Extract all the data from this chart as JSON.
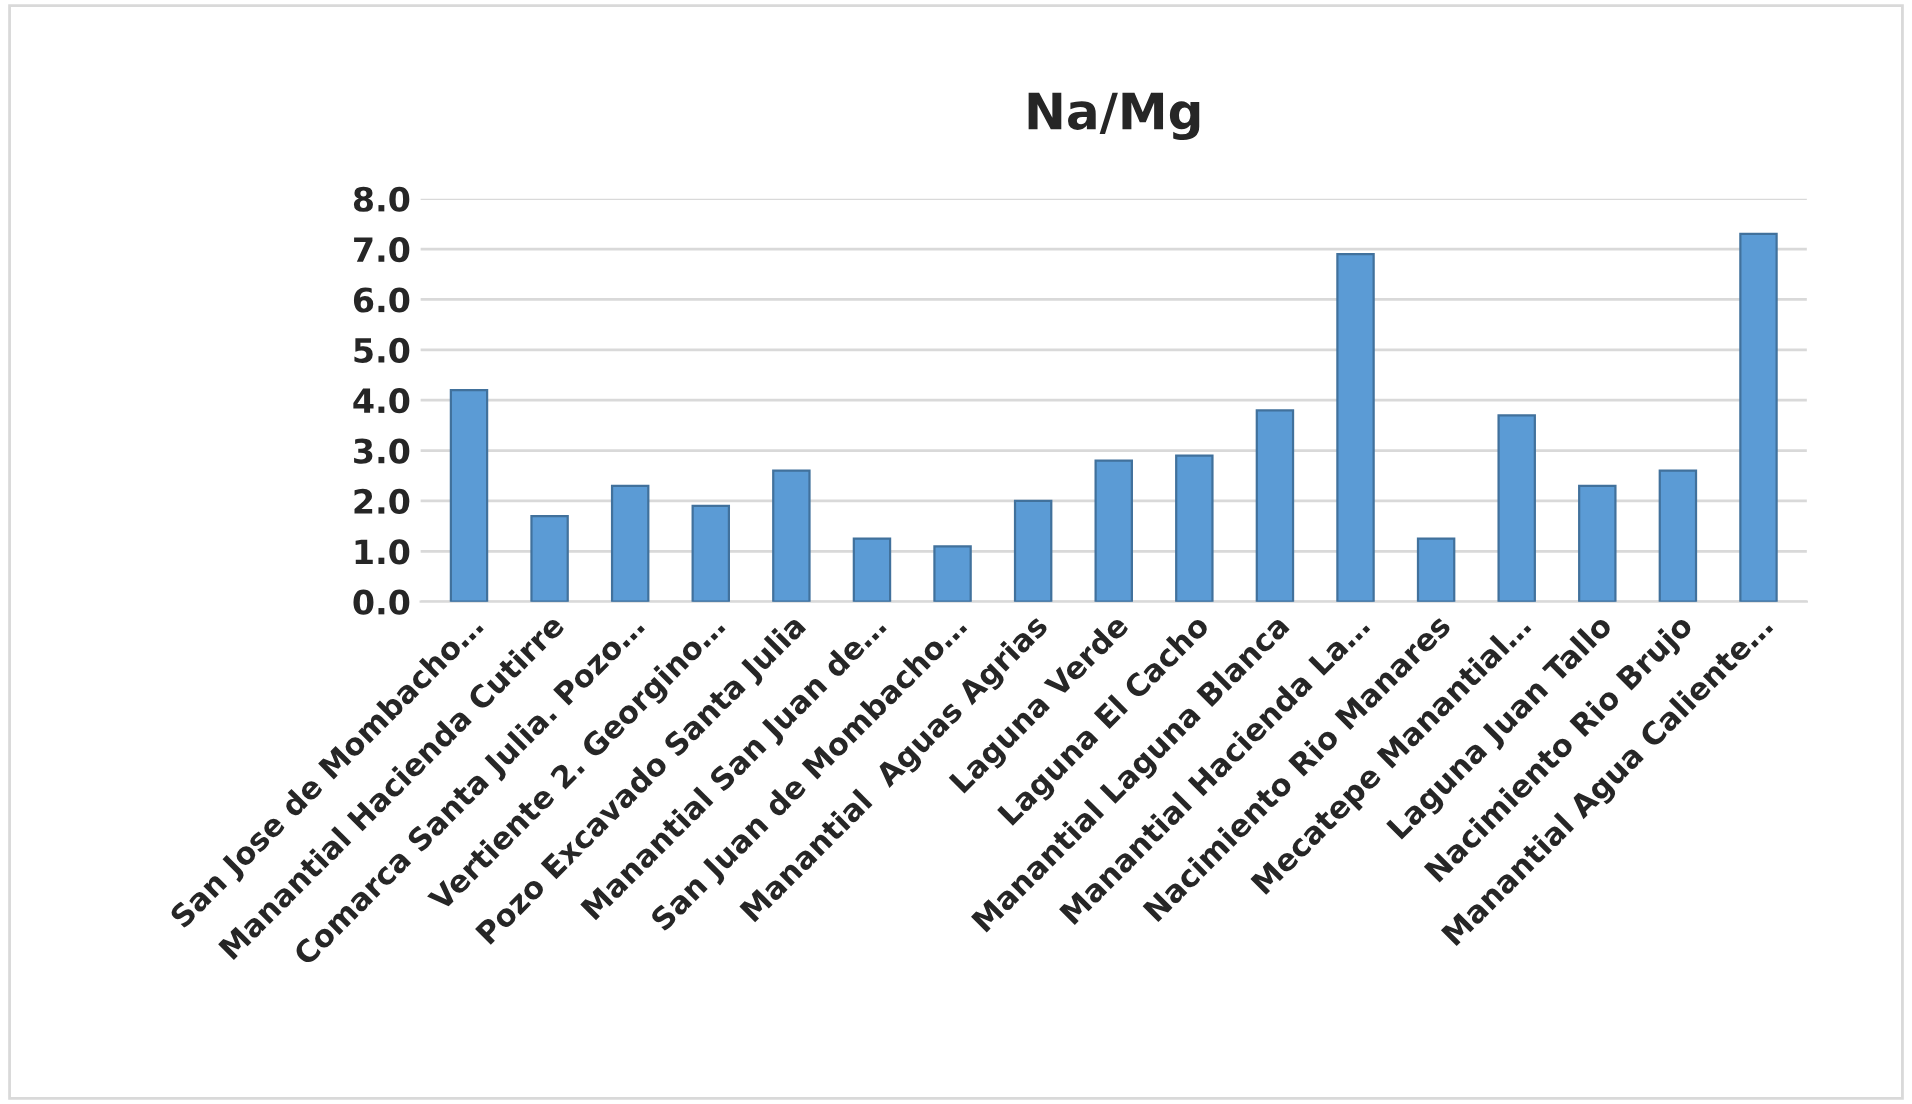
{
  "chart_data": {
    "type": "bar",
    "title": "Na/Mg",
    "categories": [
      "San Jose de Mombacho…",
      "Manantial Hacienda Cutirre",
      "Comarca Santa Julia. Pozo…",
      "Vertiente 2. Georgino…",
      "Pozo Excavado Santa Julia",
      "Manantial San Juan de…",
      "San Juan de Mombacho…",
      "Manantial  Aguas Agrias",
      "Laguna Verde",
      "Laguna El Cacho",
      "Manantial Laguna Blanca",
      "Manantial Hacienda La…",
      "Nacimiento Rio Manares",
      "Mecatepe Manantial…",
      "Laguna Juan Tallo",
      "Nacimiento Rio Brujo",
      "Manantial Agua Caliente…"
    ],
    "values": [
      4.2,
      1.7,
      2.3,
      1.9,
      2.6,
      1.25,
      1.1,
      2.0,
      2.8,
      2.9,
      3.8,
      6.9,
      1.25,
      3.7,
      2.3,
      2.6,
      7.3
    ],
    "color": "#5b9bd5",
    "ylim": [
      0,
      8
    ],
    "yticks": [
      {
        "value": 0,
        "label": "0.0"
      },
      {
        "value": 1,
        "label": "1.0"
      },
      {
        "value": 2,
        "label": "2.0"
      },
      {
        "value": 3,
        "label": "3.0"
      },
      {
        "value": 4,
        "label": "4.0"
      },
      {
        "value": 5,
        "label": "5.0"
      },
      {
        "value": 6,
        "label": "6.0"
      },
      {
        "value": 7,
        "label": "7.0"
      },
      {
        "value": 8,
        "label": "8.0"
      }
    ],
    "grid": "y",
    "legend": false
  }
}
